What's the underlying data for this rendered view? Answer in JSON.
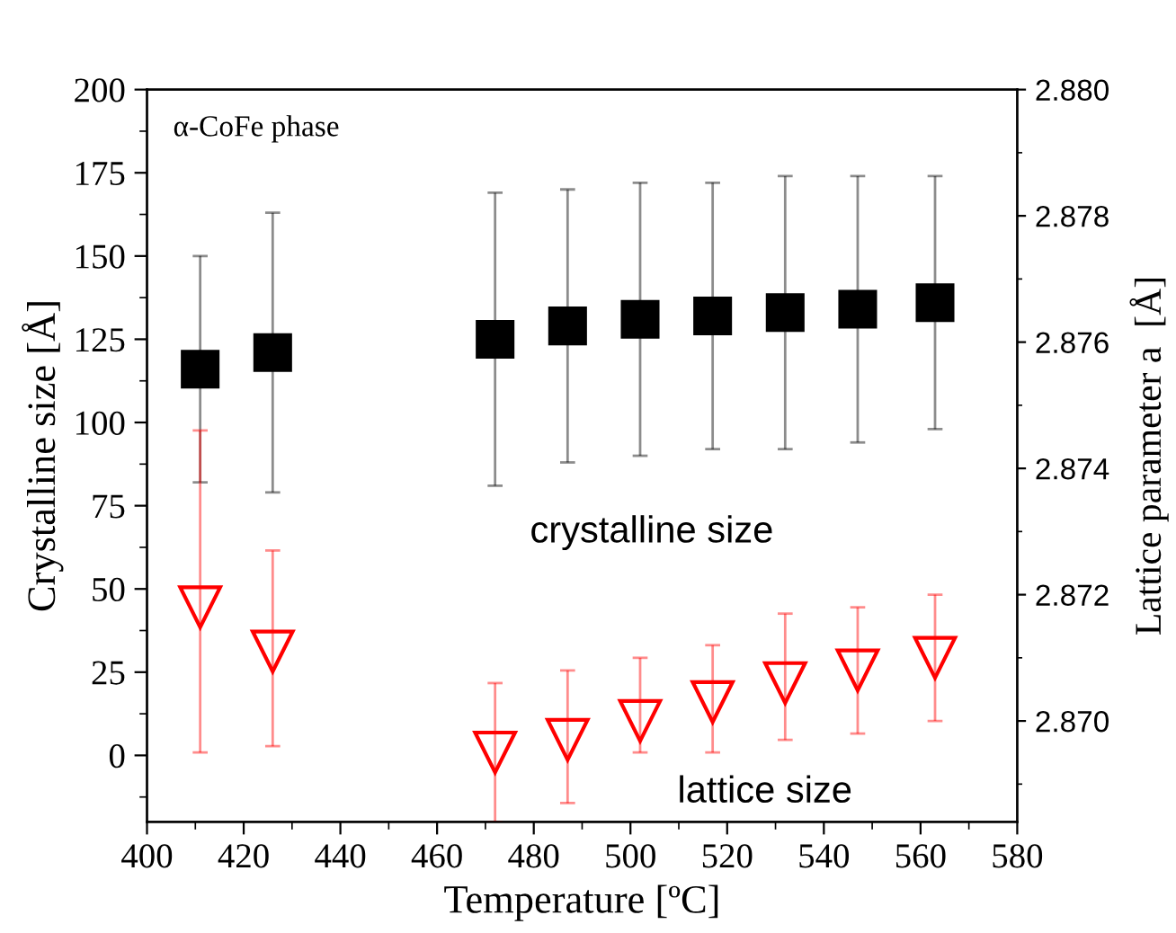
{
  "chart_data": {
    "type": "scatter",
    "xlabel": "Temperature [ºC]",
    "ylabel": "Crystalline size [Å]",
    "y2label": "Lattice parameter a  [Å]",
    "x": [
      411,
      426,
      472,
      487,
      502,
      517,
      532,
      547,
      563
    ],
    "series": [
      {
        "color": "#000000",
        "marker": "square",
        "values": [
          116,
          121,
          125,
          129,
          131,
          132,
          133,
          134,
          136
        ],
        "errors": [
          [
            82,
            150
          ],
          [
            79,
            163
          ],
          [
            81,
            169
          ],
          [
            88,
            170
          ],
          [
            90,
            172
          ],
          [
            92,
            172
          ],
          [
            92,
            174
          ],
          [
            94,
            174
          ],
          [
            98,
            174
          ]
        ]
      },
      {
        "color": "#ff0000",
        "marker": "triangle",
        "axis": "y2",
        "values": [
          2.8718,
          2.8711,
          2.8695,
          2.8697,
          2.87,
          2.8703,
          2.8706,
          2.8708,
          2.871
        ],
        "errors": [
          [
            2.8695,
            2.8746
          ],
          [
            2.8696,
            2.8727
          ],
          [
            2.8684,
            2.8706
          ],
          [
            2.8687,
            2.8708
          ],
          [
            2.8695,
            2.871
          ],
          [
            2.8695,
            2.8712
          ],
          [
            2.8697,
            2.8717
          ],
          [
            2.8698,
            2.8718
          ],
          [
            2.87,
            2.872
          ]
        ]
      }
    ],
    "xlim": [
      400,
      580
    ],
    "xticks": [
      400,
      420,
      440,
      460,
      480,
      500,
      520,
      540,
      560,
      580
    ],
    "ylim": [
      -20,
      200
    ],
    "yticks": [
      0,
      25,
      50,
      75,
      100,
      125,
      150,
      175,
      200
    ],
    "y2lim": [
      2.8684,
      2.88
    ],
    "y2ticks": [
      {
        "value": 2.87,
        "label": "2.870"
      },
      {
        "value": 2.872,
        "label": "2.872"
      },
      {
        "value": 2.874,
        "label": "2.874"
      },
      {
        "value": 2.876,
        "label": "2.876"
      },
      {
        "value": 2.878,
        "label": "2.878"
      },
      {
        "value": 2.88,
        "label": "2.880"
      }
    ],
    "annotations": [
      "α-CoFe phase",
      "crystalline size",
      "lattice size"
    ],
    "grid": false,
    "legend": false
  }
}
